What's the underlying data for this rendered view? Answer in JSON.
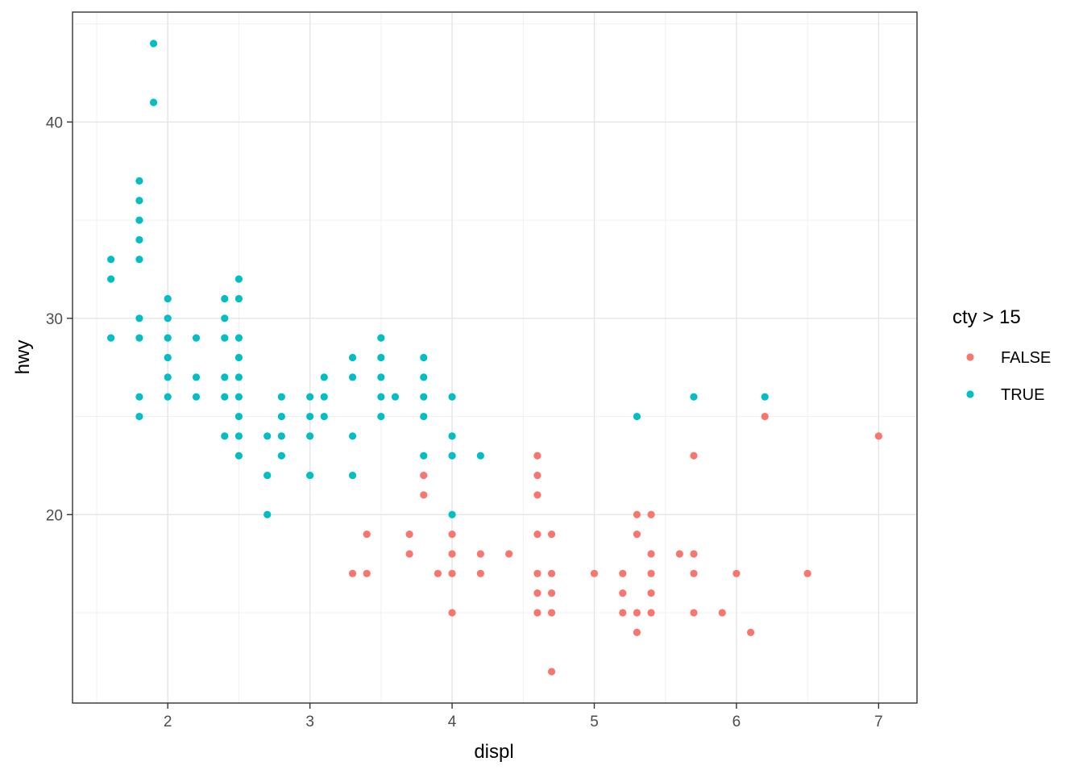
{
  "chart_data": {
    "type": "scatter",
    "xlabel": "displ",
    "ylabel": "hwy",
    "xlim": [
      1.33,
      7.27
    ],
    "ylim": [
      10.4,
      45.6
    ],
    "x_ticks": [
      2,
      3,
      4,
      5,
      6,
      7
    ],
    "y_ticks": [
      20,
      30,
      40
    ],
    "grid": true,
    "legend": {
      "title": "cty > 15",
      "position": "right",
      "entries": [
        {
          "label": "FALSE",
          "color": "#F8766D"
        },
        {
          "label": "TRUE",
          "color": "#00BFC4"
        }
      ]
    },
    "series": [
      {
        "name": "FALSE",
        "color": "#F8766D",
        "points": [
          [
            3.3,
            17
          ],
          [
            3.4,
            19
          ],
          [
            3.4,
            17
          ],
          [
            3.7,
            19
          ],
          [
            3.7,
            18
          ],
          [
            3.8,
            22
          ],
          [
            3.8,
            21
          ],
          [
            3.9,
            17
          ],
          [
            4.0,
            19
          ],
          [
            4.0,
            18
          ],
          [
            4.0,
            17
          ],
          [
            4.0,
            15
          ],
          [
            4.2,
            18
          ],
          [
            4.2,
            17
          ],
          [
            4.4,
            18
          ],
          [
            4.6,
            23
          ],
          [
            4.6,
            22
          ],
          [
            4.6,
            21
          ],
          [
            4.6,
            19
          ],
          [
            4.6,
            17
          ],
          [
            4.6,
            16
          ],
          [
            4.6,
            15
          ],
          [
            4.7,
            19
          ],
          [
            4.7,
            17
          ],
          [
            4.7,
            16
          ],
          [
            4.7,
            15
          ],
          [
            4.7,
            12
          ],
          [
            5.0,
            17
          ],
          [
            5.2,
            17
          ],
          [
            5.2,
            16
          ],
          [
            5.2,
            15
          ],
          [
            5.3,
            20
          ],
          [
            5.3,
            19
          ],
          [
            5.3,
            15
          ],
          [
            5.3,
            14
          ],
          [
            5.4,
            20
          ],
          [
            5.4,
            18
          ],
          [
            5.4,
            17
          ],
          [
            5.4,
            16
          ],
          [
            5.4,
            15
          ],
          [
            5.6,
            18
          ],
          [
            5.7,
            23
          ],
          [
            5.7,
            18
          ],
          [
            5.7,
            17
          ],
          [
            5.7,
            15
          ],
          [
            5.9,
            15
          ],
          [
            6.0,
            17
          ],
          [
            6.1,
            14
          ],
          [
            6.2,
            25
          ],
          [
            6.5,
            17
          ],
          [
            7.0,
            24
          ]
        ]
      },
      {
        "name": "TRUE",
        "color": "#00BFC4",
        "points": [
          [
            1.6,
            33
          ],
          [
            1.6,
            32
          ],
          [
            1.6,
            29
          ],
          [
            1.8,
            37
          ],
          [
            1.8,
            36
          ],
          [
            1.8,
            35
          ],
          [
            1.8,
            34
          ],
          [
            1.8,
            33
          ],
          [
            1.8,
            30
          ],
          [
            1.8,
            29
          ],
          [
            1.8,
            26
          ],
          [
            1.8,
            25
          ],
          [
            1.9,
            44
          ],
          [
            1.9,
            41
          ],
          [
            2.0,
            31
          ],
          [
            2.0,
            30
          ],
          [
            2.0,
            29
          ],
          [
            2.0,
            28
          ],
          [
            2.0,
            27
          ],
          [
            2.0,
            26
          ],
          [
            2.2,
            29
          ],
          [
            2.2,
            27
          ],
          [
            2.2,
            26
          ],
          [
            2.4,
            31
          ],
          [
            2.4,
            30
          ],
          [
            2.4,
            29
          ],
          [
            2.4,
            27
          ],
          [
            2.4,
            26
          ],
          [
            2.4,
            24
          ],
          [
            2.5,
            32
          ],
          [
            2.5,
            31
          ],
          [
            2.5,
            29
          ],
          [
            2.5,
            28
          ],
          [
            2.5,
            27
          ],
          [
            2.5,
            26
          ],
          [
            2.5,
            25
          ],
          [
            2.5,
            24
          ],
          [
            2.5,
            23
          ],
          [
            2.7,
            24
          ],
          [
            2.7,
            22
          ],
          [
            2.7,
            20
          ],
          [
            2.8,
            26
          ],
          [
            2.8,
            25
          ],
          [
            2.8,
            24
          ],
          [
            2.8,
            23
          ],
          [
            3.0,
            26
          ],
          [
            3.0,
            25
          ],
          [
            3.0,
            24
          ],
          [
            3.0,
            22
          ],
          [
            3.1,
            27
          ],
          [
            3.1,
            26
          ],
          [
            3.1,
            25
          ],
          [
            3.3,
            28
          ],
          [
            3.3,
            27
          ],
          [
            3.3,
            24
          ],
          [
            3.3,
            22
          ],
          [
            3.5,
            29
          ],
          [
            3.5,
            28
          ],
          [
            3.5,
            27
          ],
          [
            3.5,
            26
          ],
          [
            3.5,
            25
          ],
          [
            3.6,
            26
          ],
          [
            3.8,
            28
          ],
          [
            3.8,
            27
          ],
          [
            3.8,
            26
          ],
          [
            3.8,
            25
          ],
          [
            3.8,
            23
          ],
          [
            4.0,
            26
          ],
          [
            4.0,
            24
          ],
          [
            4.0,
            23
          ],
          [
            4.0,
            20
          ],
          [
            4.2,
            23
          ],
          [
            5.3,
            25
          ],
          [
            5.7,
            26
          ],
          [
            6.2,
            26
          ]
        ]
      }
    ]
  }
}
